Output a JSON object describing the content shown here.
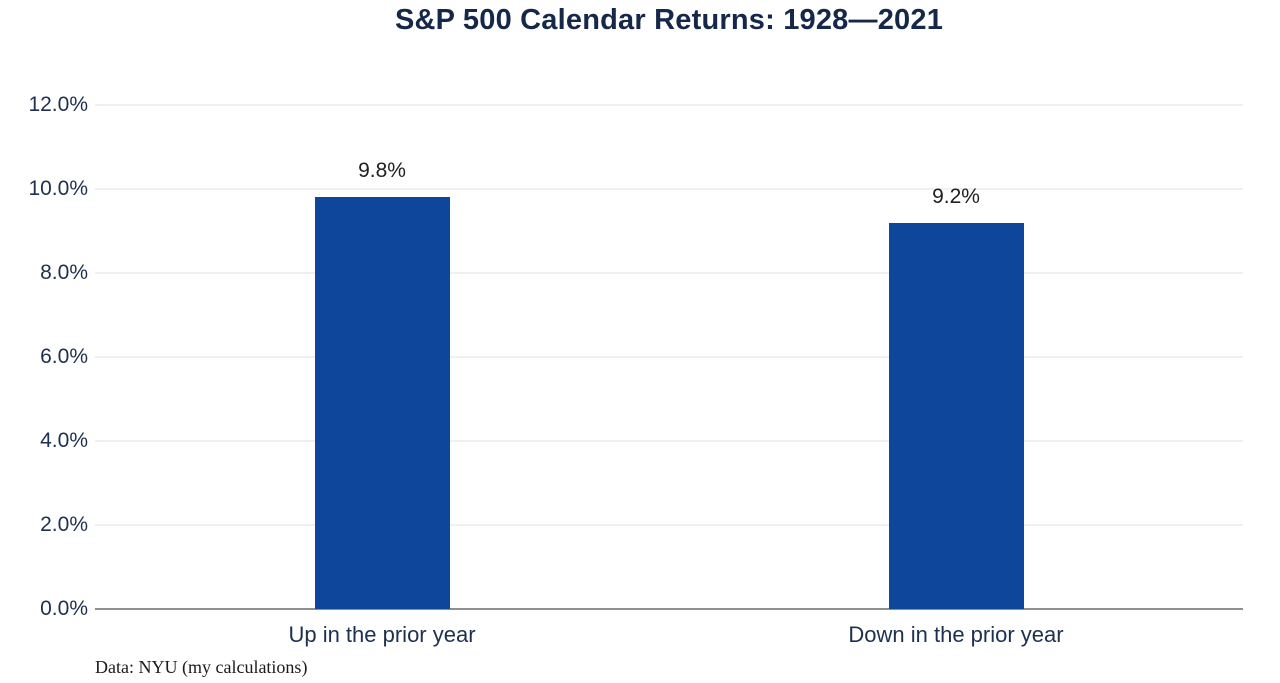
{
  "page": {
    "background_color": "#ffffff"
  },
  "chart_data": {
    "type": "bar",
    "title": "S&P 500 Calendar Returns: 1928—2021",
    "categories": [
      "Up in the prior year",
      "Down in the prior year"
    ],
    "values": [
      9.8,
      9.2
    ],
    "value_labels": [
      "9.8%",
      "9.2%"
    ],
    "y_ticks": [
      {
        "value": 0,
        "label": "0.0%"
      },
      {
        "value": 2,
        "label": "2.0%"
      },
      {
        "value": 4,
        "label": "4.0%"
      },
      {
        "value": 6,
        "label": "6.0%"
      },
      {
        "value": 8,
        "label": "8.0%"
      },
      {
        "value": 10,
        "label": "10.0%"
      },
      {
        "value": 12,
        "label": "12.0%"
      }
    ],
    "ylim": [
      0,
      12
    ],
    "xlabel": "",
    "ylabel": "",
    "grid": true,
    "legend_position": "none",
    "bar_color": "#0d469b",
    "gridline_color": "#f0f0f0",
    "axis_line_color": "#8f8f8f",
    "title_color": "#16284a",
    "tick_label_color": "#1e3050",
    "category_label_color": "#1e3050",
    "value_label_color": "#212121",
    "footer": "Data: NYU (my calculations)",
    "footer_color": "#1b1b1b"
  }
}
